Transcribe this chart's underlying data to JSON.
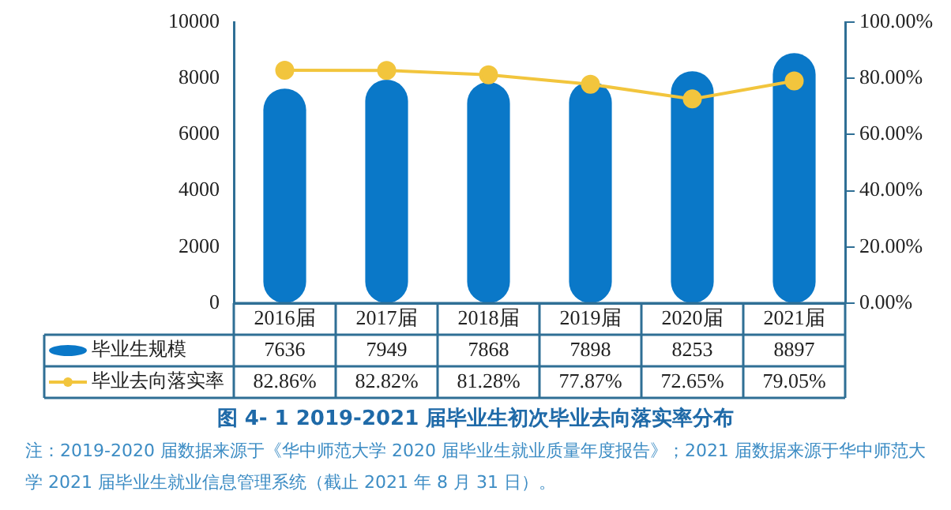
{
  "chart_data": {
    "type": "bar",
    "title": "图 4- 1  2019-2021 届毕业生初次毕业去向落实率分布",
    "categories": [
      "2016届",
      "2017届",
      "2018届",
      "2019届",
      "2020届",
      "2021届"
    ],
    "series": [
      {
        "name": "毕业生规模",
        "color": "#0a78c8",
        "values": [
          7636,
          7949,
          7868,
          7898,
          8253,
          8897
        ],
        "value_labels": [
          "7636",
          "7949",
          "7868",
          "7898",
          "8253",
          "8897"
        ]
      },
      {
        "name": "毕业去向落实率",
        "type": "line",
        "axis": "y2",
        "color": "#f2c53d",
        "marker": "circle",
        "values": [
          82.86,
          82.82,
          81.28,
          77.87,
          72.65,
          79.05
        ],
        "value_labels": [
          "82.86%",
          "82.82%",
          "81.28%",
          "77.87%",
          "72.65%",
          "79.05%"
        ]
      }
    ],
    "ylim": [
      0,
      10000
    ],
    "yticks": [
      0,
      2000,
      4000,
      6000,
      8000,
      10000
    ],
    "y2lim": [
      0,
      100
    ],
    "y2ticks": [
      {
        "value": 0,
        "label": "0.00%"
      },
      {
        "value": 20,
        "label": "20.00%"
      },
      {
        "value": 40,
        "label": "40.00%"
      },
      {
        "value": 60,
        "label": "60.00%"
      },
      {
        "value": 80,
        "label": "80.00%"
      },
      {
        "value": 100,
        "label": "100.00%"
      }
    ],
    "grid": false,
    "legend": "bottom left",
    "annotations": [
      "注：2019-2020 届数据来源于《华中师范大学 2020 届毕业生就业质量年度报告》；2021 届数据来源于华中师范大学 2021 届毕业生就业信息管理系统（截止 2021 年 8 月 31 日）。"
    ]
  }
}
